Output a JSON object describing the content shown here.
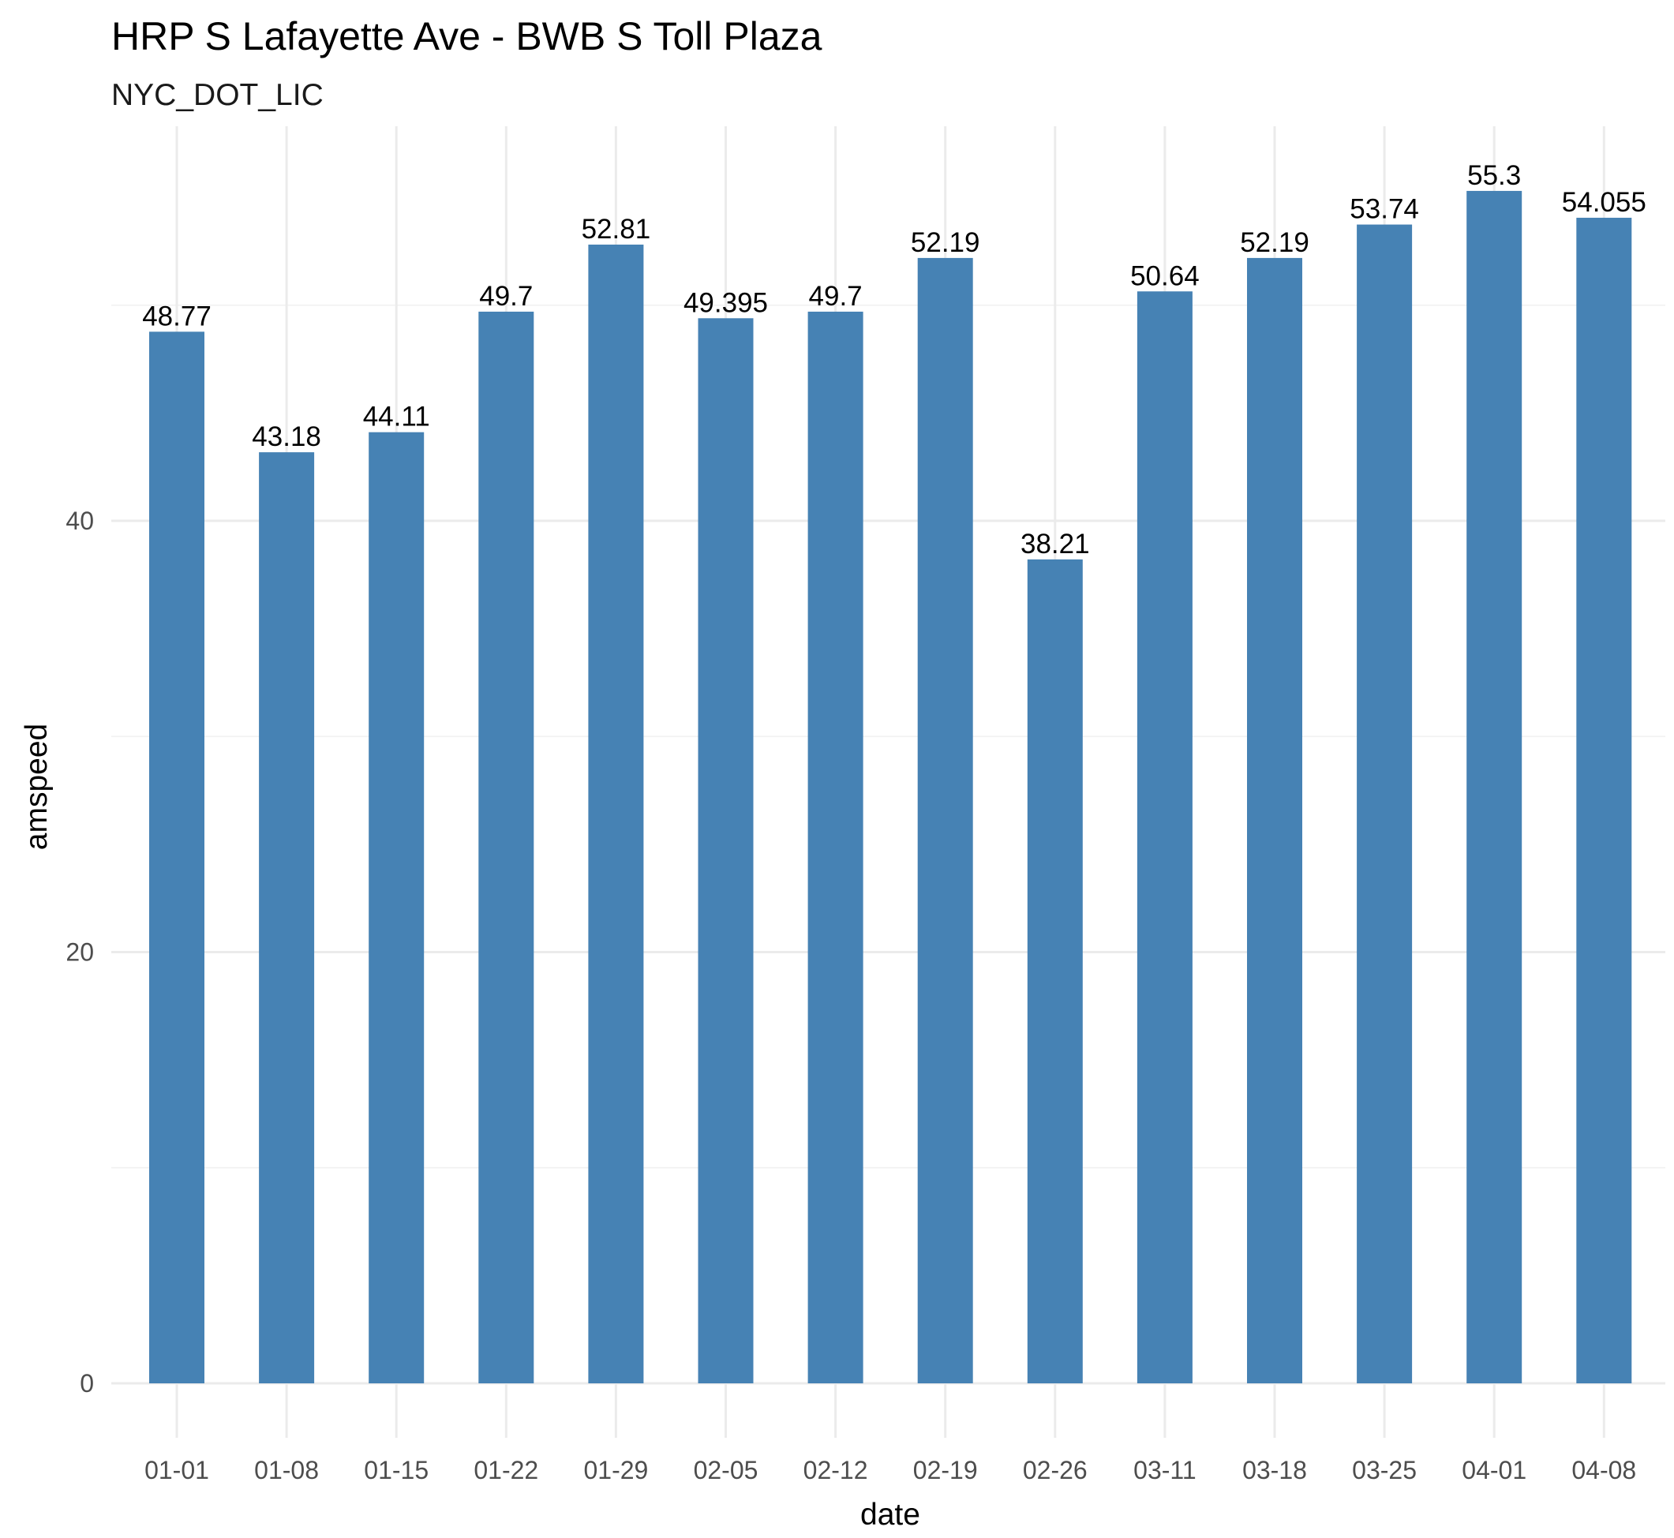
{
  "chart_data": {
    "type": "bar",
    "title": "HRP S Lafayette Ave - BWB S Toll Plaza",
    "subtitle": "NYC_DOT_LIC",
    "xlabel": "date",
    "ylabel": "amspeed",
    "categories": [
      "01-01",
      "01-08",
      "01-15",
      "01-22",
      "01-29",
      "02-05",
      "02-12",
      "02-19",
      "02-26",
      "03-11",
      "03-18",
      "03-25",
      "04-01",
      "04-08"
    ],
    "values": [
      48.77,
      43.18,
      44.11,
      49.7,
      52.81,
      49.395,
      49.7,
      52.19,
      38.21,
      50.64,
      52.19,
      53.74,
      55.3,
      54.055
    ],
    "data_labels": [
      "48.77",
      "43.18",
      "44.11",
      "49.7",
      "52.81",
      "49.395",
      "49.7",
      "52.19",
      "38.21",
      "50.64",
      "52.19",
      "53.74",
      "55.3",
      "54.055"
    ],
    "yticks": [
      0,
      20,
      40
    ],
    "ytick_labels": [
      "0",
      "20",
      "40"
    ],
    "ylim": [
      -2.77,
      58.07
    ],
    "grid": true,
    "bar_color": "#4682b4",
    "legend": "none"
  }
}
